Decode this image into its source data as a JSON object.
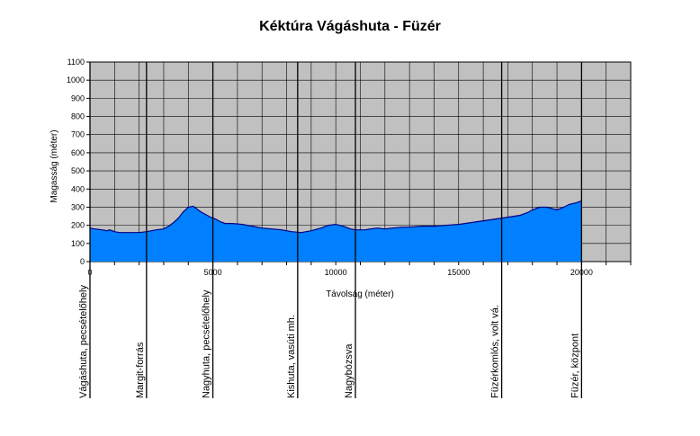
{
  "chart_data": {
    "type": "area",
    "title": "Kéktúra Vágáshuta - Füzér",
    "xlabel": "Távolság (méter)",
    "ylabel": "Magasság (méter)",
    "xlim": [
      0,
      22000
    ],
    "ylim": [
      0,
      1100
    ],
    "x_ticks": [
      0,
      5000,
      10000,
      15000,
      20000
    ],
    "x_tick_labels": [
      "0",
      "5000",
      "10000",
      "15000",
      "20000"
    ],
    "y_ticks": [
      0,
      100,
      200,
      300,
      400,
      500,
      600,
      700,
      800,
      900,
      1000,
      1100
    ],
    "y_tick_labels": [
      "0",
      "100",
      "200",
      "300",
      "400",
      "500",
      "600",
      "700",
      "800",
      "900",
      "1000",
      "1100"
    ],
    "grid": true,
    "plot_background": "#c0c0c0",
    "fill_color": "#0080ff",
    "line_color": "#000080",
    "x": [
      0,
      200,
      500,
      700,
      800,
      1000,
      1200,
      1500,
      2000,
      2300,
      2500,
      2700,
      3000,
      3200,
      3400,
      3600,
      3800,
      4000,
      4200,
      4500,
      4700,
      4900,
      5100,
      5300,
      5500,
      5800,
      6200,
      6600,
      7000,
      7400,
      7800,
      8200,
      8600,
      9000,
      9400,
      9700,
      10000,
      10300,
      10600,
      10800,
      11000,
      11200,
      11400,
      11700,
      12000,
      12300,
      12700,
      13000,
      13500,
      14000,
      14500,
      15000,
      15500,
      16000,
      16500,
      17000,
      17500,
      17800,
      18000,
      18300,
      18600,
      19000,
      19200,
      19500,
      19800,
      20000
    ],
    "y": [
      185,
      180,
      175,
      170,
      175,
      165,
      160,
      160,
      160,
      165,
      170,
      175,
      180,
      195,
      215,
      240,
      275,
      300,
      305,
      275,
      260,
      245,
      235,
      220,
      210,
      210,
      205,
      195,
      185,
      180,
      175,
      165,
      160,
      170,
      185,
      200,
      205,
      195,
      180,
      175,
      175,
      175,
      180,
      185,
      180,
      185,
      190,
      190,
      195,
      195,
      200,
      205,
      215,
      225,
      235,
      245,
      255,
      270,
      285,
      300,
      300,
      285,
      295,
      315,
      325,
      335
    ],
    "annotations": [
      {
        "x": 0,
        "label": "Vágáshuta, pecsételőhely"
      },
      {
        "x": 2300,
        "label": "Margit-forrás"
      },
      {
        "x": 5000,
        "label": "Nagyhuta, pecsételőhely"
      },
      {
        "x": 8450,
        "label": "Kishuta, vasúti mh."
      },
      {
        "x": 10800,
        "label": "Nagybózsva"
      },
      {
        "x": 16750,
        "label": "Füzérkomlós, volt vá."
      },
      {
        "x": 20000,
        "label": "Füzér, központ"
      }
    ]
  }
}
